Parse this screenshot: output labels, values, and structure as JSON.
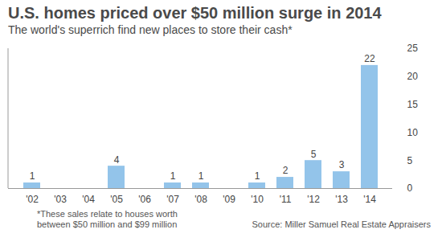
{
  "chart_data": {
    "type": "bar",
    "title": "U.S. homes priced over $50 million surge in 2014",
    "subtitle": "The world's superrich find new places to store their cash*",
    "categories": [
      "'02",
      "'03",
      "'04",
      "'05",
      "'06",
      "'07",
      "'08",
      "'09",
      "'10",
      "'11",
      "'12",
      "'13",
      "'14"
    ],
    "values": [
      1,
      null,
      null,
      4,
      null,
      1,
      1,
      null,
      1,
      2,
      5,
      3,
      22
    ],
    "color": "#93c4ea",
    "ylim": [
      0,
      25
    ],
    "yticks": [
      0,
      5,
      10,
      15,
      20,
      25
    ],
    "grid": false,
    "data_labels": true,
    "note": "*These sales relate to houses worth between $50 million and $99 million",
    "source": "Source: Miller Samuel Real Estate Appraisers"
  }
}
